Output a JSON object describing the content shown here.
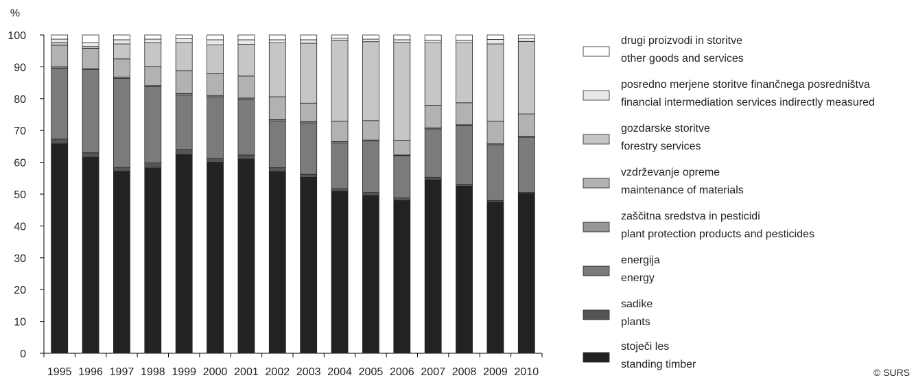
{
  "chart_data": {
    "type": "bar",
    "stacked": true,
    "percent_stacked": true,
    "y_unit": "%",
    "ylim": [
      0,
      100
    ],
    "yticks": [
      0,
      10,
      20,
      30,
      40,
      50,
      60,
      70,
      80,
      90,
      100
    ],
    "categories": [
      "1995",
      "1996",
      "1997",
      "1998",
      "1999",
      "2000",
      "2001",
      "2002",
      "2003",
      "2004",
      "2005",
      "2006",
      "2007",
      "2008",
      "2009",
      "2010"
    ],
    "series": [
      {
        "name": "stoječi les\nstanding timber",
        "label_si": "stoječi les",
        "label_en": "standing timber",
        "color": "#222222",
        "values": [
          65.8,
          61.6,
          57.2,
          58.2,
          62.4,
          60.0,
          61.0,
          57.1,
          55.3,
          50.9,
          49.6,
          48.0,
          54.5,
          52.5,
          47.5,
          50.2
        ]
      },
      {
        "name": "sadike\nplants",
        "label_si": "sadike",
        "label_en": "plants",
        "color": "#555555",
        "values": [
          1.5,
          1.4,
          1.2,
          1.6,
          1.6,
          1.2,
          1.3,
          1.2,
          0.9,
          0.8,
          0.9,
          0.8,
          0.8,
          0.6,
          0.5,
          0.3
        ]
      },
      {
        "name": "energija\nenergy",
        "label_si": "energija",
        "label_en": "energy",
        "color": "#7b7b7b",
        "values": [
          22.3,
          26.1,
          27.9,
          24.0,
          17.1,
          19.4,
          17.5,
          14.7,
          16.2,
          14.4,
          16.2,
          13.3,
          15.2,
          18.4,
          17.5,
          17.4
        ]
      },
      {
        "name": "zaščitna sredstva in pesticidi\nplant protection products and pesticides",
        "label_si": "zaščitna sredstva in pesticidi",
        "label_en": "plant protection products and pesticides",
        "color": "#979797",
        "values": [
          0.4,
          0.3,
          0.5,
          0.3,
          0.5,
          0.4,
          0.4,
          0.4,
          0.4,
          0.4,
          0.3,
          0.2,
          0.3,
          0.3,
          0.3,
          0.3
        ]
      },
      {
        "name": "vzdrževanje opreme\nmaintenance of materials",
        "label_si": "vzdrževanje opreme",
        "label_en": "maintenance of materials",
        "color": "#b2b2b2",
        "values": [
          6.8,
          6.4,
          5.7,
          6.0,
          7.2,
          6.8,
          6.9,
          7.2,
          5.8,
          6.4,
          6.1,
          4.6,
          7.1,
          6.9,
          7.1,
          7.0
        ]
      },
      {
        "name": "gozdarske storitve\nforestry services",
        "label_si": "gozdarske storitve",
        "label_en": "forestry services",
        "color": "#c6c6c6",
        "values": [
          0.9,
          0.6,
          4.7,
          7.5,
          8.9,
          9.1,
          10.0,
          16.9,
          18.8,
          25.4,
          24.8,
          30.8,
          19.6,
          18.8,
          24.3,
          22.8
        ]
      },
      {
        "name": "posredno merjene storitve finančnega posredništva\nfinancial intermediation services indirectly measured",
        "label_si": "posredno merjene storitve finančnega  posredništva",
        "label_en": "financial intermediation services indirectly measured",
        "color": "#e8e8e8",
        "values": [
          1.0,
          1.2,
          1.3,
          1.1,
          1.1,
          1.6,
          1.4,
          1.0,
          1.1,
          0.7,
          0.8,
          0.8,
          0.9,
          0.9,
          1.4,
          0.9
        ]
      },
      {
        "name": "drugi proizvodi in storitve\nother goods and services",
        "label_si": "drugi proizvodi in storitve",
        "label_en": "other goods and services",
        "color": "#ffffff",
        "values": [
          1.3,
          2.4,
          1.5,
          1.3,
          1.2,
          1.5,
          1.5,
          1.5,
          1.5,
          1.0,
          1.3,
          1.5,
          1.6,
          1.6,
          1.4,
          1.1
        ]
      }
    ],
    "legend_position": "right",
    "credit": "© SURS",
    "colors": {
      "outline": "#222222",
      "axis": "#000000"
    }
  }
}
